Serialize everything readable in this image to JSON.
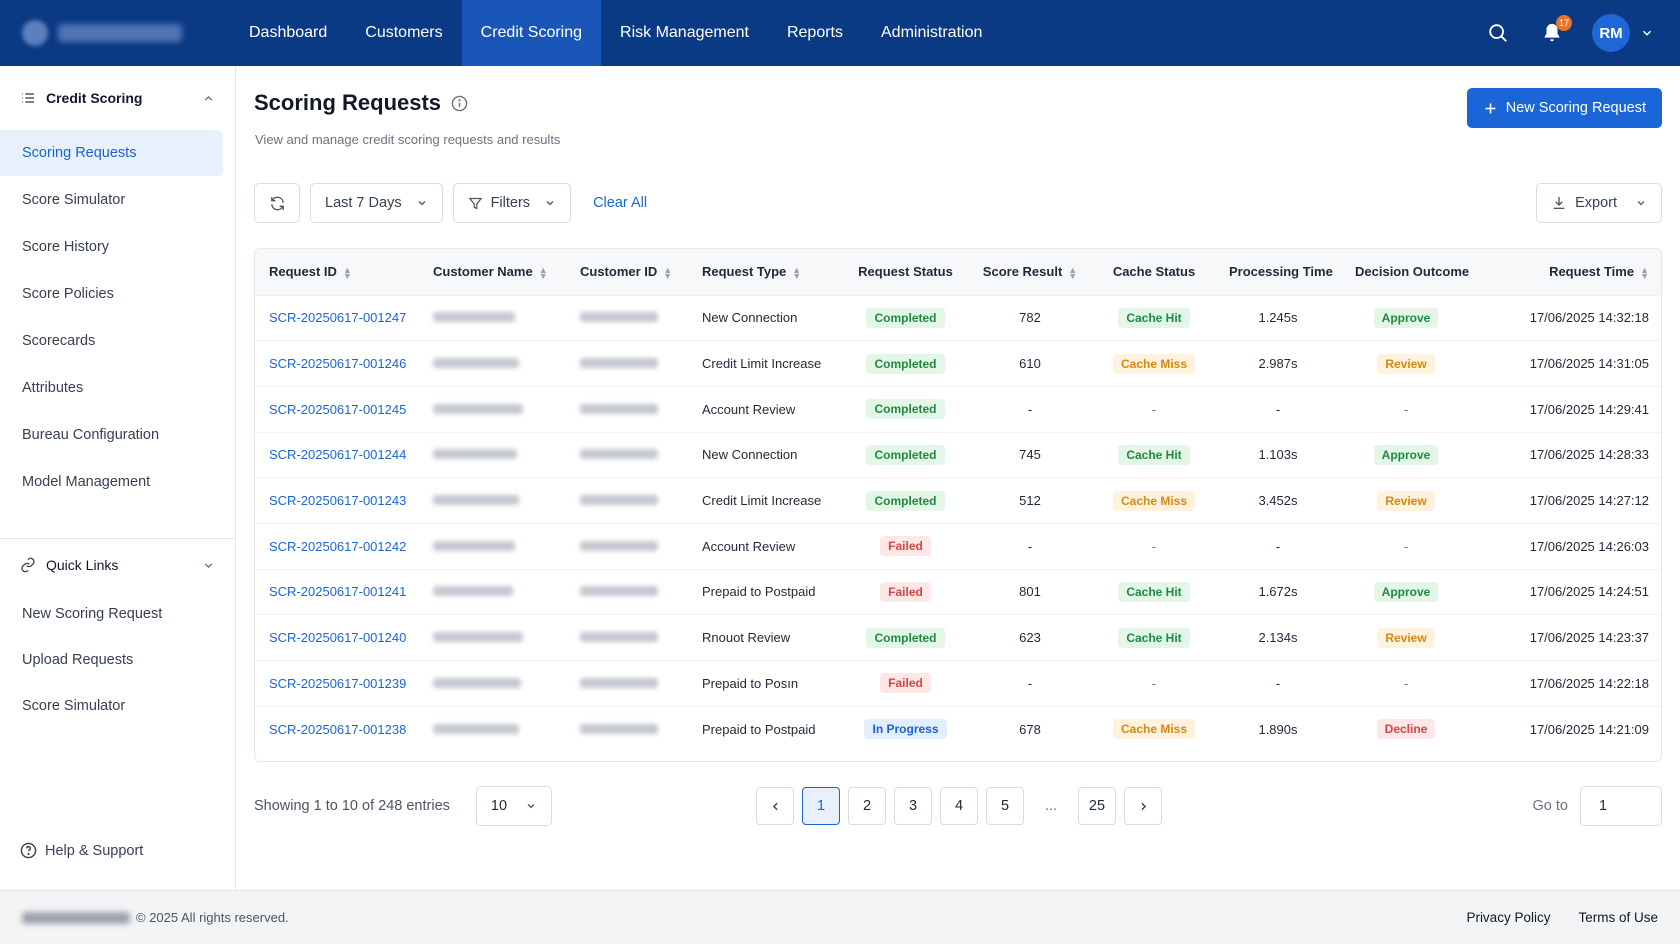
{
  "topnav": {
    "items": [
      {
        "label": "Dashboard",
        "active": false
      },
      {
        "label": "Customers",
        "active": false
      },
      {
        "label": "Credit Scoring",
        "active": true
      },
      {
        "label": "Risk Management",
        "active": false
      },
      {
        "label": "Reports",
        "active": false
      },
      {
        "label": "Administration",
        "active": false
      }
    ],
    "notification_count": "17",
    "user_initials": "RM"
  },
  "sidebar": {
    "section_title": "Credit Scoring",
    "items": [
      {
        "label": "Scoring Requests",
        "active": true
      },
      {
        "label": "Score Simulator"
      },
      {
        "label": "Score History"
      },
      {
        "label": "Score Policies"
      },
      {
        "label": "Scorecards"
      },
      {
        "label": "Attributes"
      },
      {
        "label": "Bureau Configuration"
      },
      {
        "label": "Model Management"
      }
    ],
    "quick_links_title": "Quick Links",
    "quick_links": [
      {
        "label": "New Scoring Request"
      },
      {
        "label": "Upload Requests"
      },
      {
        "label": "Score Simulator"
      }
    ],
    "help_label": "Help & Support"
  },
  "page": {
    "title": "Scoring Requests",
    "subtitle": "View and manage credit scoring requests and results",
    "new_button": "New Scoring Request"
  },
  "toolbar": {
    "date_range": "Last 7 Days",
    "filters_label": "Filters",
    "clear_all": "Clear All",
    "export_label": "Export"
  },
  "table": {
    "columns": [
      "Request ID",
      "Customer Name",
      "Customer ID",
      "Request Type",
      "Request Status",
      "Score Result",
      "Cache Status",
      "Processing Time",
      "Decision Outcome",
      "Request Time"
    ],
    "rows": [
      {
        "id": "SCR-20250617-001247",
        "type": "New Connection",
        "status": "Completed",
        "score": "782",
        "cache": "Cache Hit",
        "time": "1.245s",
        "decision": "Approve",
        "request_time": "17/06/2025 14:32:18"
      },
      {
        "id": "SCR-20250617-001246",
        "type": "Credit Limit Increase",
        "status": "Completed",
        "score": "610",
        "cache": "Cache Miss",
        "time": "2.987s",
        "decision": "Review",
        "request_time": "17/06/2025 14:31:05"
      },
      {
        "id": "SCR-20250617-001245",
        "type": "Account Review",
        "status": "Completed",
        "score": "-",
        "cache": "-",
        "time": "-",
        "decision": "-",
        "request_time": "17/06/2025 14:29:41"
      },
      {
        "id": "SCR-20250617-001244",
        "type": "New Connection",
        "status": "Completed",
        "score": "745",
        "cache": "Cache Hit",
        "time": "1.103s",
        "decision": "Approve",
        "request_time": "17/06/2025 14:28:33"
      },
      {
        "id": "SCR-20250617-001243",
        "type": "Credit Limit Increase",
        "status": "Completed",
        "score": "512",
        "cache": "Cache Miss",
        "time": "3.452s",
        "decision": "Review",
        "request_time": "17/06/2025 14:27:12"
      },
      {
        "id": "SCR-20250617-001242",
        "type": "Account Review",
        "status": "Failed",
        "score": "-",
        "cache": "-",
        "time": "-",
        "decision": "-",
        "request_time": "17/06/2025 14:26:03"
      },
      {
        "id": "SCR-20250617-001241",
        "type": "Prepaid to Postpaid",
        "status": "Failed",
        "score": "801",
        "cache": "Cache Hit",
        "time": "1.672s",
        "decision": "Approve",
        "request_time": "17/06/2025 14:24:51"
      },
      {
        "id": "SCR-20250617-001240",
        "type": "Rnouot Review",
        "status": "Completed",
        "score": "623",
        "cache": "Cache Hit",
        "time": "2.134s",
        "decision": "Review",
        "request_time": "17/06/2025 14:23:37"
      },
      {
        "id": "SCR-20250617-001239",
        "type": "Prepaid to Posın",
        "status": "Failed",
        "score": "-",
        "cache": "-",
        "time": "-",
        "decision": "-",
        "request_time": "17/06/2025 14:22:18"
      },
      {
        "id": "SCR-20250617-001238",
        "type": "Prepaid to Postpaid",
        "status": "In Progress",
        "score": "678",
        "cache": "Cache Miss",
        "time": "1.890s",
        "decision": "Decline",
        "request_time": "17/06/2025 14:21:09"
      }
    ]
  },
  "pagination": {
    "showing": "Showing 1 to 10 of 248 entries",
    "page_size": "10",
    "pages": [
      "1",
      "2",
      "3",
      "4",
      "5",
      "...",
      "25"
    ],
    "current": "1",
    "goto_label": "Go to",
    "goto_value": "1"
  },
  "footer": {
    "copyright": "© 2025 All rights reserved.",
    "links": [
      "Privacy Policy",
      "Terms of Use"
    ]
  },
  "colors": {
    "nav_bg": "#0b3a84",
    "nav_active": "#1a56b8",
    "primary": "#1a66d9"
  }
}
